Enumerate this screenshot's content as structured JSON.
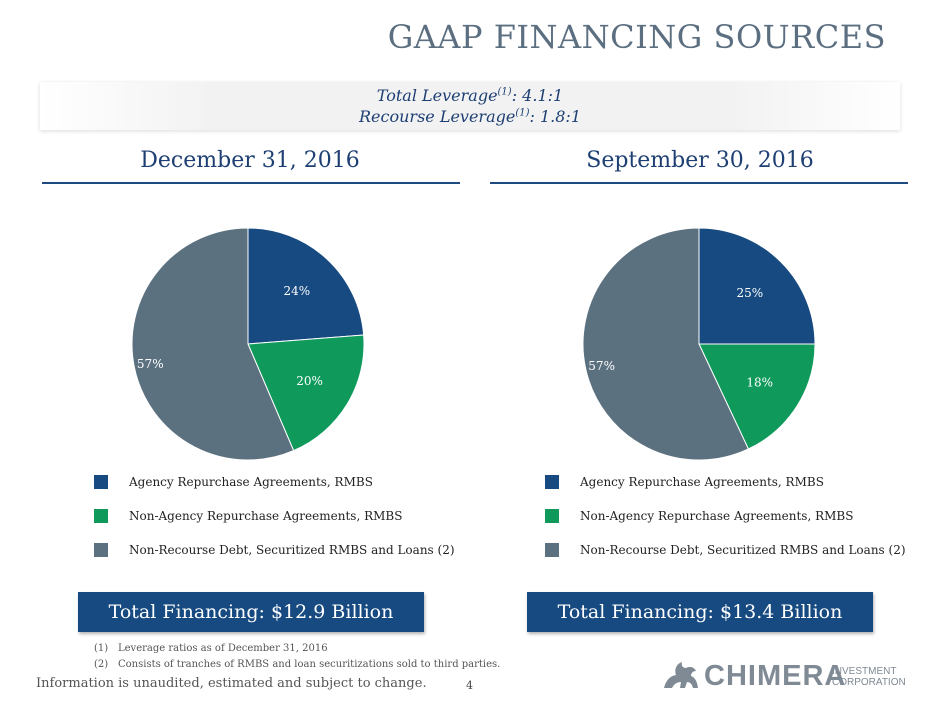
{
  "title": "GAAP FINANCING SOURCES",
  "leverage": {
    "total_label": "Total Leverage",
    "total_sup": "(1)",
    "total_value": ":  4.1:1",
    "recourse_label": "Recourse Leverage",
    "recourse_sup": "(1)",
    "recourse_value": ":  1.8:1"
  },
  "colors": {
    "agency": "#164a80",
    "non_agency": "#0f9a5c",
    "non_recourse": "#5c7180"
  },
  "chart_data": [
    {
      "type": "pie",
      "title": "December 31, 2016",
      "categories": [
        "Agency Repurchase Agreements, RMBS",
        "Non-Agency Repurchase Agreements, RMBS",
        "Non-Recourse Debt, Securitized RMBS and Loans (2)"
      ],
      "values": [
        24,
        20,
        57
      ],
      "labels": [
        "24%",
        "20%",
        "57%"
      ],
      "total_financing": "Total Financing: $12.9 Billion"
    },
    {
      "type": "pie",
      "title": "September 30, 2016",
      "categories": [
        "Agency Repurchase Agreements, RMBS",
        "Non-Agency Repurchase Agreements, RMBS",
        "Non-Recourse Debt, Securitized RMBS and Loans (2)"
      ],
      "values": [
        25,
        18,
        57
      ],
      "labels": [
        "25%",
        "18%",
        "57%"
      ],
      "total_financing": "Total Financing: $13.4 Billion"
    }
  ],
  "footnotes": [
    {
      "num": "(1)",
      "text": "Leverage ratios as of December 31, 2016"
    },
    {
      "num": "(2)",
      "text": "Consists of tranches of RMBS and loan securitizations sold to third parties."
    }
  ],
  "disclaimer": "Information is unaudited, estimated and subject to change.",
  "page_number": "4",
  "logo": {
    "name": "CHIMERA",
    "line1": "INVESTMENT",
    "line2": "CORPORATION"
  }
}
